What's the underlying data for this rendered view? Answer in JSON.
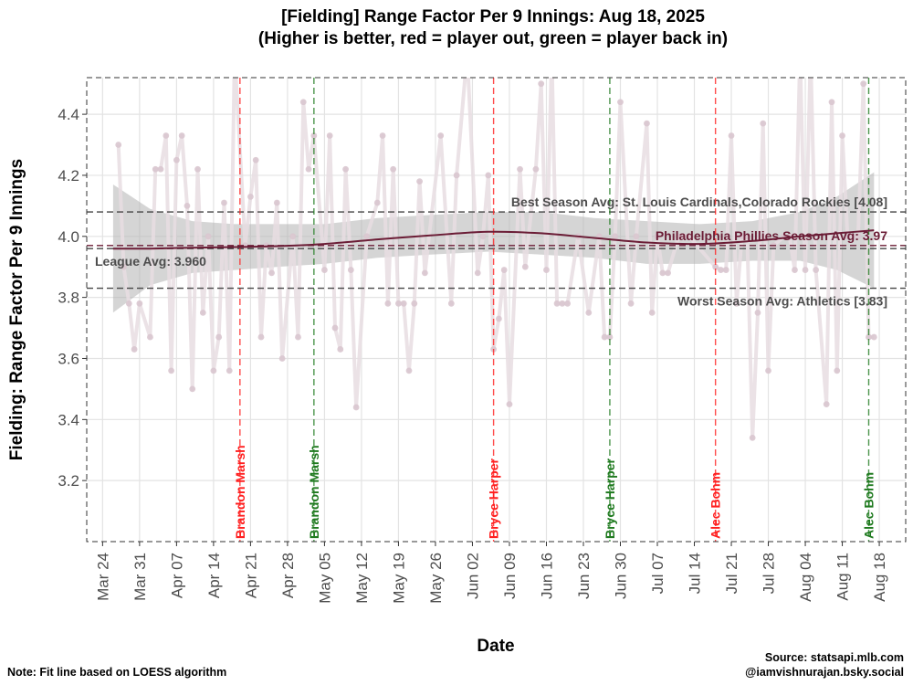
{
  "chart_data": {
    "type": "line",
    "title": "[Fielding] Range Factor Per 9 Innings: Aug 18, 2025",
    "subtitle": "(Higher is better, red = player out, green = player back in)",
    "xlabel": "Date",
    "ylabel": "Fielding: Range Factor Per 9 Innings",
    "xlim": [
      "2025-03-21",
      "2025-08-23"
    ],
    "ylim": [
      3.0,
      4.52
    ],
    "x_ticks": [
      {
        "date": "2025-03-24",
        "label": "Mar 24"
      },
      {
        "date": "2025-03-31",
        "label": "Mar 31"
      },
      {
        "date": "2025-04-07",
        "label": "Apr 07"
      },
      {
        "date": "2025-04-14",
        "label": "Apr 14"
      },
      {
        "date": "2025-04-21",
        "label": "Apr 21"
      },
      {
        "date": "2025-04-28",
        "label": "Apr 28"
      },
      {
        "date": "2025-05-05",
        "label": "May 05"
      },
      {
        "date": "2025-05-12",
        "label": "May 12"
      },
      {
        "date": "2025-05-19",
        "label": "May 19"
      },
      {
        "date": "2025-05-26",
        "label": "May 26"
      },
      {
        "date": "2025-06-02",
        "label": "Jun 02"
      },
      {
        "date": "2025-06-09",
        "label": "Jun 09"
      },
      {
        "date": "2025-06-16",
        "label": "Jun 16"
      },
      {
        "date": "2025-06-23",
        "label": "Jun 23"
      },
      {
        "date": "2025-06-30",
        "label": "Jun 30"
      },
      {
        "date": "2025-07-07",
        "label": "Jul 07"
      },
      {
        "date": "2025-07-14",
        "label": "Jul 14"
      },
      {
        "date": "2025-07-21",
        "label": "Jul 21"
      },
      {
        "date": "2025-07-28",
        "label": "Jul 28"
      },
      {
        "date": "2025-08-04",
        "label": "Aug 04"
      },
      {
        "date": "2025-08-11",
        "label": "Aug 11"
      },
      {
        "date": "2025-08-18",
        "label": "Aug 18"
      }
    ],
    "y_ticks": [
      {
        "value": 3.2,
        "label": "3.2"
      },
      {
        "value": 3.4,
        "label": "3.4"
      },
      {
        "value": 3.6,
        "label": "3.6"
      },
      {
        "value": 3.8,
        "label": "3.8"
      },
      {
        "value": 4.0,
        "label": "4.0"
      },
      {
        "value": 4.2,
        "label": "4.2"
      },
      {
        "value": 4.4,
        "label": "4.4"
      }
    ],
    "series": [
      {
        "values": [
          {
            "x": "2025-03-27",
            "y": 4.3
          },
          {
            "x": "2025-03-28",
            "y": 3.9
          },
          {
            "x": "2025-03-29",
            "y": 3.78
          },
          {
            "x": "2025-03-30",
            "y": 3.63
          },
          {
            "x": "2025-03-31",
            "y": 3.78
          },
          {
            "x": "2025-04-02",
            "y": 3.67
          },
          {
            "x": "2025-04-03",
            "y": 4.22
          },
          {
            "x": "2025-04-04",
            "y": 4.22
          },
          {
            "x": "2025-04-05",
            "y": 4.33
          },
          {
            "x": "2025-04-06",
            "y": 3.56
          },
          {
            "x": "2025-04-07",
            "y": 4.25
          },
          {
            "x": "2025-04-08",
            "y": 4.33
          },
          {
            "x": "2025-04-09",
            "y": 4.1
          },
          {
            "x": "2025-04-10",
            "y": 3.5
          },
          {
            "x": "2025-04-11",
            "y": 4.22
          },
          {
            "x": "2025-04-12",
            "y": 3.75
          },
          {
            "x": "2025-04-13",
            "y": 4.0
          },
          {
            "x": "2025-04-14",
            "y": 3.56
          },
          {
            "x": "2025-04-15",
            "y": 3.67
          },
          {
            "x": "2025-04-16",
            "y": 4.11
          },
          {
            "x": "2025-04-17",
            "y": 3.56
          },
          {
            "x": "2025-04-18",
            "y": 4.6
          },
          {
            "x": "2025-04-20",
            "y": 3.97
          },
          {
            "x": "2025-04-21",
            "y": 4.13
          },
          {
            "x": "2025-04-22",
            "y": 4.25
          },
          {
            "x": "2025-04-23",
            "y": 3.67
          },
          {
            "x": "2025-04-24",
            "y": 3.97
          },
          {
            "x": "2025-04-25",
            "y": 3.88
          },
          {
            "x": "2025-04-26",
            "y": 4.11
          },
          {
            "x": "2025-04-27",
            "y": 3.6
          },
          {
            "x": "2025-04-29",
            "y": 4.0
          },
          {
            "x": "2025-04-30",
            "y": 3.67
          },
          {
            "x": "2025-05-01",
            "y": 4.44
          },
          {
            "x": "2025-05-02",
            "y": 4.22
          },
          {
            "x": "2025-05-03",
            "y": 4.33
          },
          {
            "x": "2025-05-05",
            "y": 3.89
          },
          {
            "x": "2025-05-06",
            "y": 4.33
          },
          {
            "x": "2025-05-07",
            "y": 3.7
          },
          {
            "x": "2025-05-08",
            "y": 3.63
          },
          {
            "x": "2025-05-09",
            "y": 4.22
          },
          {
            "x": "2025-05-10",
            "y": 3.89
          },
          {
            "x": "2025-05-11",
            "y": 3.44
          },
          {
            "x": "2025-05-13",
            "y": 4.0
          },
          {
            "x": "2025-05-15",
            "y": 4.11
          },
          {
            "x": "2025-05-16",
            "y": 4.33
          },
          {
            "x": "2025-05-17",
            "y": 3.78
          },
          {
            "x": "2025-05-18",
            "y": 4.22
          },
          {
            "x": "2025-05-19",
            "y": 3.78
          },
          {
            "x": "2025-05-20",
            "y": 3.78
          },
          {
            "x": "2025-05-21",
            "y": 3.56
          },
          {
            "x": "2025-05-22",
            "y": 3.78
          },
          {
            "x": "2025-05-23",
            "y": 4.18
          },
          {
            "x": "2025-05-24",
            "y": 3.88
          },
          {
            "x": "2025-05-27",
            "y": 4.33
          },
          {
            "x": "2025-05-29",
            "y": 3.78
          },
          {
            "x": "2025-05-30",
            "y": 4.2
          },
          {
            "x": "2025-06-01",
            "y": 4.6
          },
          {
            "x": "2025-06-03",
            "y": 3.88
          },
          {
            "x": "2025-06-04",
            "y": 4.0
          },
          {
            "x": "2025-06-05",
            "y": 4.2
          },
          {
            "x": "2025-06-06",
            "y": 3.63
          },
          {
            "x": "2025-06-07",
            "y": 3.73
          },
          {
            "x": "2025-06-08",
            "y": 3.89
          },
          {
            "x": "2025-06-09",
            "y": 3.45
          },
          {
            "x": "2025-06-11",
            "y": 4.22
          },
          {
            "x": "2025-06-12",
            "y": 3.9
          },
          {
            "x": "2025-06-14",
            "y": 4.22
          },
          {
            "x": "2025-06-15",
            "y": 4.5
          },
          {
            "x": "2025-06-16",
            "y": 3.89
          },
          {
            "x": "2025-06-17",
            "y": 4.6
          },
          {
            "x": "2025-06-18",
            "y": 3.78
          },
          {
            "x": "2025-06-19",
            "y": 3.78
          },
          {
            "x": "2025-06-20",
            "y": 3.78
          },
          {
            "x": "2025-06-22",
            "y": 4.0
          },
          {
            "x": "2025-06-24",
            "y": 3.75
          },
          {
            "x": "2025-06-26",
            "y": 4.0
          },
          {
            "x": "2025-06-27",
            "y": 3.67
          },
          {
            "x": "2025-06-28",
            "y": 3.67
          },
          {
            "x": "2025-06-29",
            "y": 4.0
          },
          {
            "x": "2025-06-30",
            "y": 4.44
          },
          {
            "x": "2025-07-02",
            "y": 3.78
          },
          {
            "x": "2025-07-03",
            "y": 4.0
          },
          {
            "x": "2025-07-05",
            "y": 4.37
          },
          {
            "x": "2025-07-06",
            "y": 3.75
          },
          {
            "x": "2025-07-07",
            "y": 4.0
          },
          {
            "x": "2025-07-08",
            "y": 3.88
          },
          {
            "x": "2025-07-09",
            "y": 3.88
          },
          {
            "x": "2025-07-11",
            "y": 4.0
          },
          {
            "x": "2025-07-12",
            "y": 4.0
          },
          {
            "x": "2025-07-13",
            "y": 4.0
          },
          {
            "x": "2025-07-18",
            "y": 3.9
          },
          {
            "x": "2025-07-19",
            "y": 3.89
          },
          {
            "x": "2025-07-20",
            "y": 3.89
          },
          {
            "x": "2025-07-21",
            "y": 4.33
          },
          {
            "x": "2025-07-22",
            "y": 3.78
          },
          {
            "x": "2025-07-23",
            "y": 4.0
          },
          {
            "x": "2025-07-24",
            "y": 4.0
          },
          {
            "x": "2025-07-25",
            "y": 3.34
          },
          {
            "x": "2025-07-26",
            "y": 3.75
          },
          {
            "x": "2025-07-27",
            "y": 4.37
          },
          {
            "x": "2025-07-28",
            "y": 3.56
          },
          {
            "x": "2025-07-29",
            "y": 3.97
          },
          {
            "x": "2025-07-31",
            "y": 4.0
          },
          {
            "x": "2025-08-01",
            "y": 4.0
          },
          {
            "x": "2025-08-02",
            "y": 3.89
          },
          {
            "x": "2025-08-03",
            "y": 4.6
          },
          {
            "x": "2025-08-04",
            "y": 3.89
          },
          {
            "x": "2025-08-05",
            "y": 4.6
          },
          {
            "x": "2025-08-06",
            "y": 3.89
          },
          {
            "x": "2025-08-08",
            "y": 3.45
          },
          {
            "x": "2025-08-09",
            "y": 4.44
          },
          {
            "x": "2025-08-10",
            "y": 3.56
          },
          {
            "x": "2025-08-11",
            "y": 4.33
          },
          {
            "x": "2025-08-12",
            "y": 4.0
          },
          {
            "x": "2025-08-13",
            "y": 4.0
          },
          {
            "x": "2025-08-14",
            "y": 4.0
          },
          {
            "x": "2025-08-15",
            "y": 4.5
          },
          {
            "x": "2025-08-16",
            "y": 3.67
          },
          {
            "x": "2025-08-17",
            "y": 3.67
          }
        ],
        "color": "#e8dde2"
      }
    ],
    "loess_fit": {
      "color": "#6b1d36",
      "band_color": "#b3b3b3",
      "points": [
        {
          "x": "2025-03-26",
          "y": 3.96,
          "lo": 3.75,
          "hi": 4.17
        },
        {
          "x": "2025-04-02",
          "y": 3.96,
          "lo": 3.84,
          "hi": 4.09
        },
        {
          "x": "2025-04-10",
          "y": 3.963,
          "lo": 3.88,
          "hi": 4.05
        },
        {
          "x": "2025-04-18",
          "y": 3.965,
          "lo": 3.89,
          "hi": 4.04
        },
        {
          "x": "2025-04-26",
          "y": 3.968,
          "lo": 3.9,
          "hi": 4.04
        },
        {
          "x": "2025-05-05",
          "y": 3.975,
          "lo": 3.91,
          "hi": 4.04
        },
        {
          "x": "2025-05-15",
          "y": 3.99,
          "lo": 3.93,
          "hi": 4.06
        },
        {
          "x": "2025-05-25",
          "y": 4.003,
          "lo": 3.94,
          "hi": 4.07
        },
        {
          "x": "2025-06-05",
          "y": 4.015,
          "lo": 3.95,
          "hi": 4.08
        },
        {
          "x": "2025-06-15",
          "y": 4.01,
          "lo": 3.94,
          "hi": 4.08
        },
        {
          "x": "2025-06-25",
          "y": 3.995,
          "lo": 3.93,
          "hi": 4.06
        },
        {
          "x": "2025-07-05",
          "y": 3.98,
          "lo": 3.91,
          "hi": 4.05
        },
        {
          "x": "2025-07-15",
          "y": 3.975,
          "lo": 3.91,
          "hi": 4.04
        },
        {
          "x": "2025-07-25",
          "y": 3.985,
          "lo": 3.92,
          "hi": 4.05
        },
        {
          "x": "2025-08-03",
          "y": 4.0,
          "lo": 3.92,
          "hi": 4.08
        },
        {
          "x": "2025-08-10",
          "y": 4.01,
          "lo": 3.89,
          "hi": 4.13
        },
        {
          "x": "2025-08-17",
          "y": 4.02,
          "lo": 3.83,
          "hi": 4.21
        }
      ]
    },
    "reference_lines": [
      {
        "value": 4.08,
        "label": "Best Season Avg: St. Louis Cardinals,Colorado Rockies [4.08]",
        "color": "#4d4d4d",
        "label_side": "above",
        "label_anchor": "right"
      },
      {
        "value": 3.97,
        "label": "Philadelphia Phillies Season Avg: 3.97",
        "color": "#6b1d36",
        "label_side": "above",
        "label_anchor": "right"
      },
      {
        "value": 3.96,
        "label": "League Avg: 3.960",
        "color": "#4d4d4d",
        "label_side": "below",
        "label_anchor": "left"
      },
      {
        "value": 3.83,
        "label": "Worst Season Avg: Athletics [3.83]",
        "color": "#4d4d4d",
        "label_side": "below",
        "label_anchor": "right"
      }
    ],
    "event_lines": [
      {
        "date": "2025-04-19",
        "label": "Brandon Marsh",
        "color": "#ff1f1f",
        "type": "out"
      },
      {
        "date": "2025-05-03",
        "label": "Brandon Marsh",
        "color": "#1f7a1f",
        "type": "in"
      },
      {
        "date": "2025-06-06",
        "label": "Bryce Harper",
        "color": "#ff1f1f",
        "type": "out"
      },
      {
        "date": "2025-06-28",
        "label": "Bryce Harper",
        "color": "#1f7a1f",
        "type": "in"
      },
      {
        "date": "2025-07-18",
        "label": "Alec Bohm",
        "color": "#ff1f1f",
        "type": "out"
      },
      {
        "date": "2025-08-16",
        "label": "Alec Bohm",
        "color": "#1f7a1f",
        "type": "in"
      }
    ],
    "grid": true,
    "legend": "none"
  },
  "footer": {
    "note": "Note: Fit line based on LOESS algorithm",
    "source_line1": "Source: statsapi.mlb.com",
    "source_line2": "@iamvishnurajan.bsky.social"
  }
}
